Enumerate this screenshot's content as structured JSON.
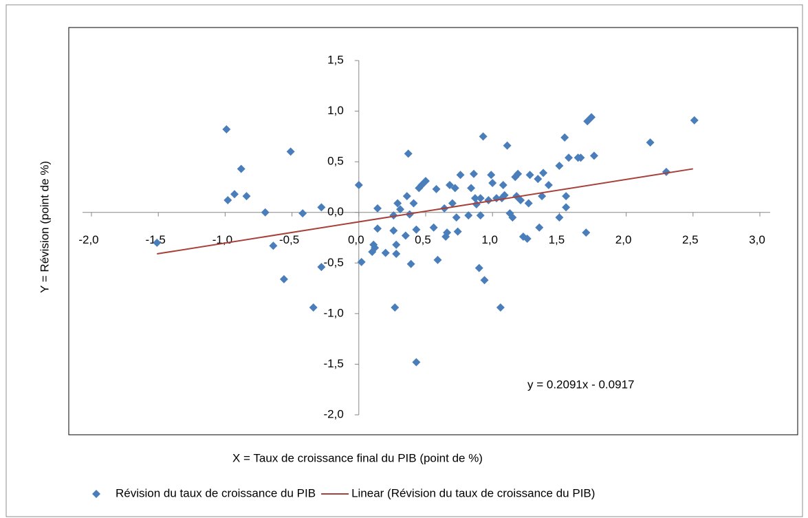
{
  "chart_data": {
    "type": "scatter",
    "x_label": "X = Taux de croissance final du PIB (point de %)",
    "y_label": "Y = Révision (point de %)",
    "annotation": "y = 0.2091x - 0.0917",
    "xlim": [
      -2,
      3
    ],
    "ylim": [
      -2,
      1.5
    ],
    "xticks": [
      {
        "value": -2,
        "label": "-2,0"
      },
      {
        "value": -1.5,
        "label": "-1,5"
      },
      {
        "value": -1,
        "label": "-1,0"
      },
      {
        "value": -0.5,
        "label": "-0,5"
      },
      {
        "value": 0,
        "label": "0,0"
      },
      {
        "value": 0.5,
        "label": "0,5"
      },
      {
        "value": 1,
        "label": "1,0"
      },
      {
        "value": 1.5,
        "label": "1,5"
      },
      {
        "value": 2,
        "label": "2,0"
      },
      {
        "value": 2.5,
        "label": "2,5"
      },
      {
        "value": 3,
        "label": "3,0"
      }
    ],
    "yticks": [
      {
        "value": -2,
        "label": "-2,0"
      },
      {
        "value": -1.5,
        "label": "-1,5"
      },
      {
        "value": -1,
        "label": "-1,0"
      },
      {
        "value": -0.5,
        "label": "-0,5"
      },
      {
        "value": 0,
        "label": "0,0"
      },
      {
        "value": 0.5,
        "label": "0,5"
      },
      {
        "value": 1,
        "label": "1,0"
      },
      {
        "value": 1.5,
        "label": "1,5"
      }
    ],
    "legend": "bottom",
    "series": [
      {
        "name": "Révision du taux de croissance du PIB",
        "color": "#4a7ebb",
        "marker": "diamond",
        "x": [
          -1.51,
          -0.99,
          -0.98,
          -0.93,
          -0.88,
          -0.84,
          -0.7,
          -0.64,
          -0.56,
          -0.51,
          -0.42,
          -0.34,
          -0.28,
          -0.28,
          0.0,
          0.02,
          0.1,
          0.11,
          0.12,
          0.14,
          0.14,
          0.2,
          0.26,
          0.26,
          0.27,
          0.28,
          0.28,
          0.29,
          0.31,
          0.35,
          0.36,
          0.37,
          0.38,
          0.39,
          0.41,
          0.43,
          0.43,
          0.45,
          0.47,
          0.5,
          0.56,
          0.58,
          0.59,
          0.64,
          0.65,
          0.66,
          0.68,
          0.7,
          0.72,
          0.73,
          0.74,
          0.76,
          0.82,
          0.84,
          0.86,
          0.87,
          0.88,
          0.9,
          0.91,
          0.91,
          0.93,
          0.94,
          0.97,
          0.99,
          1.0,
          1.03,
          1.06,
          1.07,
          1.08,
          1.09,
          1.11,
          1.13,
          1.15,
          1.17,
          1.18,
          1.19,
          1.21,
          1.23,
          1.26,
          1.27,
          1.28,
          1.34,
          1.35,
          1.37,
          1.38,
          1.42,
          1.5,
          1.5,
          1.54,
          1.55,
          1.55,
          1.57,
          1.64,
          1.66,
          1.7,
          1.71,
          1.74,
          1.76,
          2.18,
          2.3,
          2.51
        ],
        "values": [
          -0.3,
          0.82,
          0.12,
          0.18,
          0.43,
          0.16,
          0.0,
          -0.33,
          -0.66,
          0.6,
          -0.01,
          -0.94,
          0.05,
          -0.54,
          0.27,
          -0.49,
          -0.39,
          -0.32,
          -0.35,
          -0.16,
          0.04,
          -0.4,
          -0.18,
          -0.03,
          -0.94,
          -0.41,
          -0.32,
          0.09,
          0.03,
          -0.23,
          0.16,
          0.58,
          -0.02,
          -0.51,
          0.09,
          -0.17,
          -1.48,
          0.24,
          0.27,
          0.31,
          -0.15,
          0.23,
          -0.47,
          0.04,
          -0.24,
          -0.2,
          0.27,
          0.09,
          0.24,
          -0.05,
          -0.19,
          0.37,
          -0.03,
          0.24,
          0.38,
          0.14,
          0.08,
          -0.55,
          -0.03,
          0.14,
          0.75,
          -0.67,
          0.12,
          0.37,
          0.29,
          0.14,
          -0.94,
          0.14,
          0.27,
          0.17,
          0.66,
          -0.01,
          -0.05,
          0.35,
          0.16,
          0.38,
          0.12,
          -0.24,
          -0.26,
          0.09,
          0.37,
          0.33,
          -0.15,
          0.16,
          0.39,
          0.27,
          0.46,
          -0.05,
          0.74,
          0.05,
          0.16,
          0.54,
          0.54,
          0.54,
          -0.2,
          0.9,
          0.94,
          0.56,
          0.69,
          0.4,
          0.91
        ]
      },
      {
        "name": "Linear (Révision du taux de croissance du PIB)",
        "color": "#a8403a",
        "marker": "line",
        "x": [
          -1.51,
          2.5
        ],
        "values": [
          -0.41,
          0.43
        ]
      }
    ]
  }
}
